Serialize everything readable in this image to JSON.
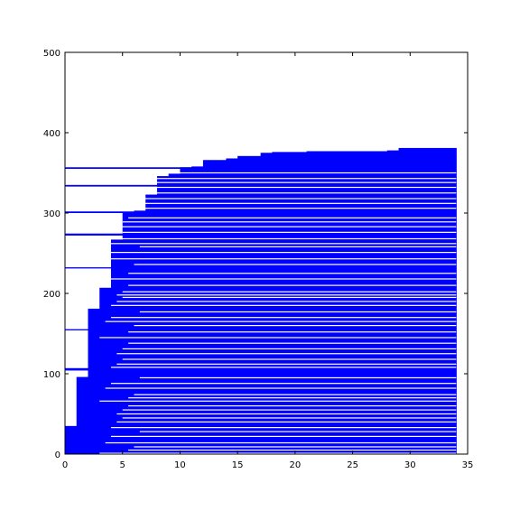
{
  "chart_data": {
    "type": "bar",
    "orientation": "horizontal-staircase",
    "title": "",
    "xlabel": "",
    "ylabel": "",
    "xlim": [
      0,
      35
    ],
    "ylim": [
      0,
      500
    ],
    "xticks": [
      0,
      5,
      10,
      15,
      20,
      25,
      30,
      35
    ],
    "yticks": [
      0,
      100,
      200,
      300,
      400,
      500
    ],
    "grid": false,
    "bar_color": "#0000ff",
    "envelope_steps": [
      {
        "x_start": 0,
        "x_end": 1,
        "y_top": 35
      },
      {
        "x_start": 1,
        "x_end": 2,
        "y_top": 96
      },
      {
        "x_start": 2,
        "x_end": 3,
        "y_top": 181
      },
      {
        "x_start": 3,
        "x_end": 4,
        "y_top": 207
      },
      {
        "x_start": 4,
        "x_end": 5,
        "y_top": 267
      },
      {
        "x_start": 5,
        "x_end": 6,
        "y_top": 300
      },
      {
        "x_start": 6,
        "x_end": 7,
        "y_top": 303
      },
      {
        "x_start": 7,
        "x_end": 8,
        "y_top": 323
      },
      {
        "x_start": 8,
        "x_end": 9,
        "y_top": 346
      },
      {
        "x_start": 9,
        "x_end": 10,
        "y_top": 349
      },
      {
        "x_start": 10,
        "x_end": 11,
        "y_top": 357
      },
      {
        "x_start": 11,
        "x_end": 12,
        "y_top": 358
      },
      {
        "x_start": 12,
        "x_end": 14,
        "y_top": 366
      },
      {
        "x_start": 14,
        "x_end": 15,
        "y_top": 368
      },
      {
        "x_start": 15,
        "x_end": 17,
        "y_top": 371
      },
      {
        "x_start": 17,
        "x_end": 18,
        "y_top": 375
      },
      {
        "x_start": 18,
        "x_end": 21,
        "y_top": 376
      },
      {
        "x_start": 21,
        "x_end": 28,
        "y_top": 377
      },
      {
        "x_start": 28,
        "x_end": 29,
        "y_top": 378
      },
      {
        "x_start": 29,
        "x_end": 34,
        "y_top": 381
      }
    ],
    "gap_lines_y": [
      1,
      5,
      9,
      14,
      22,
      28,
      33,
      40,
      45,
      50,
      55,
      60,
      66,
      70,
      74,
      82,
      88,
      95,
      108,
      112,
      118,
      125,
      131,
      138,
      145,
      152,
      160,
      165,
      170,
      177,
      185,
      190,
      195,
      198,
      202,
      210,
      218,
      225,
      236,
      243,
      251,
      258,
      262,
      268,
      276,
      283,
      289,
      294,
      306,
      312,
      318,
      325,
      332,
      338,
      343,
      350
    ],
    "extended_bars": [
      {
        "y": 104,
        "height": 3,
        "x_end": 34
      },
      {
        "y": 154,
        "height": 1.5,
        "x_end": 34
      },
      {
        "y": 231,
        "height": 1.5,
        "x_end": 34
      },
      {
        "y": 272,
        "height": 2.5,
        "x_end": 34
      },
      {
        "y": 300,
        "height": 2,
        "x_end": 34
      },
      {
        "y": 333,
        "height": 2,
        "x_end": 34
      },
      {
        "y": 355,
        "height": 2,
        "x_end": 34
      }
    ]
  }
}
